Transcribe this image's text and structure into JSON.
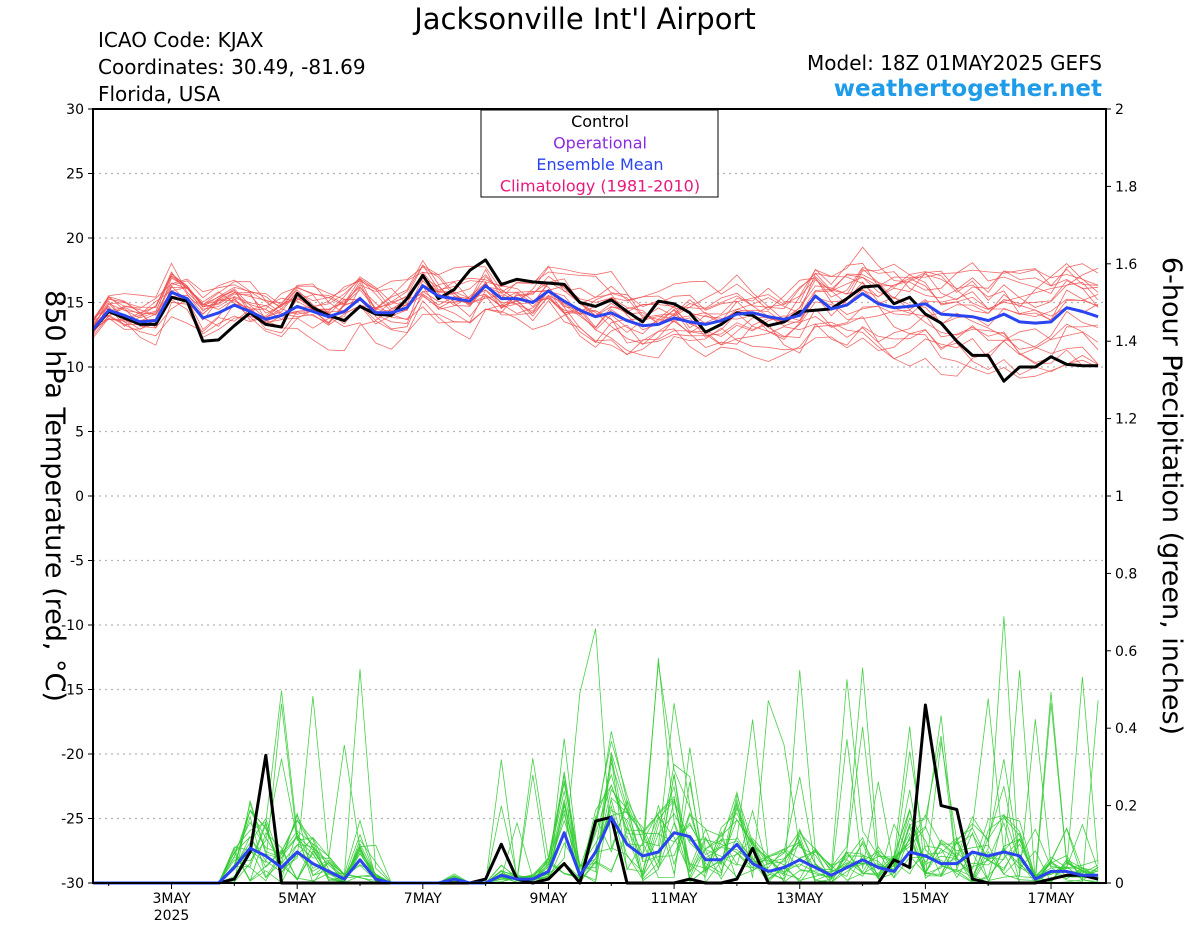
{
  "header": {
    "title": "Jacksonville Int'l Airport",
    "icao": "ICAO Code: KJAX",
    "coordinates": "Coordinates: 30.49, -81.69",
    "region": "Florida, USA",
    "model": "Model: 18Z 01MAY2025 GEFS",
    "website": "weathertogether.net"
  },
  "colors": {
    "members_temp": "#f05050",
    "members_precip": "#33cc33",
    "control": "#000000",
    "operational": "#8a2be2",
    "ensemble_mean": "#2a44f0",
    "climatology": "#e6197d",
    "website": "#1e9be9"
  },
  "chart_data": {
    "type": "line",
    "ylabel": "850 hPa Temperature (red, °C)",
    "y2label": "6-hour Precipitation (green, inches)",
    "ylim": [
      -30,
      30
    ],
    "y2lim": [
      0,
      2
    ],
    "yticks": [
      "30",
      "25",
      "20",
      "15",
      "10",
      "5",
      "0",
      "-5",
      "-10",
      "-15",
      "-20",
      "-25",
      "-30"
    ],
    "y2ticks": [
      "2",
      "1.8",
      "1.6",
      "1.4",
      "1.2",
      "1",
      "0.8",
      "0.6",
      "0.4",
      "0.2",
      "0"
    ],
    "x_start": "2025-05-01T18Z",
    "x_step_hours": 6,
    "xlim_days": [
      1.75,
      17.875
    ],
    "xticks": [
      {
        "day": 3,
        "label": "3MAY",
        "sub": "2025"
      },
      {
        "day": 5,
        "label": "5MAY",
        "sub": ""
      },
      {
        "day": 7,
        "label": "7MAY",
        "sub": ""
      },
      {
        "day": 9,
        "label": "9MAY",
        "sub": ""
      },
      {
        "day": 11,
        "label": "11MAY",
        "sub": ""
      },
      {
        "day": 13,
        "label": "13MAY",
        "sub": ""
      },
      {
        "day": 15,
        "label": "15MAY",
        "sub": ""
      },
      {
        "day": 17,
        "label": "17MAY",
        "sub": ""
      }
    ],
    "grid": true,
    "legend_position": "top-center",
    "legend": [
      {
        "label": "Control",
        "color": "#000000"
      },
      {
        "label": "Operational",
        "color": "#8a2be2"
      },
      {
        "label": "Ensemble Mean",
        "color": "#2a44f0"
      },
      {
        "label": "Climatology (1981-2010)",
        "color": "#e6197d"
      }
    ],
    "series": [
      {
        "name": "Control",
        "axis": "temperature",
        "values": [
          12.9,
          14.3,
          13.8,
          13.3,
          13.3,
          15.4,
          15.1,
          12.0,
          12.1,
          13.2,
          14.2,
          13.3,
          13.1,
          15.7,
          14.6,
          14.0,
          13.6,
          14.7,
          14.1,
          14.0,
          15.3,
          17.1,
          15.3,
          16.0,
          17.5,
          18.3,
          16.4,
          16.8,
          16.6,
          16.5,
          16.4,
          15.0,
          14.7,
          15.2,
          14.3,
          13.5,
          15.1,
          14.9,
          14.2,
          12.7,
          13.3,
          14.2,
          14.0,
          13.2,
          13.5,
          14.3,
          14.4,
          14.5,
          15.3,
          16.2,
          16.3,
          14.9,
          15.4,
          14.1,
          13.4,
          12.0,
          10.9,
          10.9,
          8.9,
          10.0,
          10.0,
          10.8,
          10.2,
          10.1,
          10.1
        ]
      },
      {
        "name": "Ensemble Mean",
        "axis": "temperature",
        "values": [
          12.9,
          14.4,
          14.0,
          13.5,
          13.6,
          15.8,
          15.3,
          13.8,
          14.2,
          14.8,
          14.3,
          13.7,
          14.0,
          14.7,
          14.3,
          13.9,
          14.3,
          15.3,
          14.2,
          14.2,
          14.6,
          16.3,
          15.5,
          15.3,
          15.1,
          16.3,
          15.3,
          15.3,
          15.0,
          15.9,
          15.1,
          14.4,
          13.9,
          14.2,
          13.6,
          13.2,
          13.3,
          13.8,
          13.5,
          13.3,
          13.6,
          14.1,
          14.2,
          13.9,
          13.7,
          14.0,
          15.5,
          14.5,
          14.8,
          15.7,
          14.9,
          14.6,
          14.7,
          14.9,
          14.1,
          14.0,
          13.9,
          13.6,
          14.1,
          13.5,
          13.4,
          13.5,
          14.6,
          14.3,
          13.9
        ]
      },
      {
        "name": "Control",
        "axis": "precipitation",
        "values": [
          0,
          0,
          0,
          0,
          0,
          0,
          0,
          0,
          0,
          0.01,
          0.08,
          0.33,
          0,
          0,
          0,
          0,
          0,
          0,
          0,
          0,
          0,
          0,
          0,
          0,
          0,
          0.01,
          0.1,
          0.01,
          0,
          0.01,
          0.05,
          0,
          0.16,
          0.17,
          0,
          0,
          0,
          0,
          0.01,
          0,
          0,
          0.01,
          0.09,
          0,
          0,
          0,
          0,
          0,
          0,
          0,
          0,
          0.06,
          0.04,
          0.46,
          0.2,
          0.19,
          0.01,
          0,
          0,
          0,
          0,
          0.01,
          0.02,
          0.02,
          0.01
        ]
      },
      {
        "name": "Ensemble Mean",
        "axis": "precipitation",
        "values": [
          0,
          0,
          0,
          0,
          0,
          0,
          0,
          0,
          0,
          0.04,
          0.09,
          0.07,
          0.04,
          0.08,
          0.05,
          0.03,
          0.01,
          0.06,
          0.01,
          0,
          0,
          0,
          0,
          0.01,
          0,
          0,
          0.02,
          0.01,
          0.01,
          0.03,
          0.13,
          0.02,
          0.08,
          0.17,
          0.1,
          0.07,
          0.08,
          0.13,
          0.12,
          0.06,
          0.06,
          0.1,
          0.05,
          0.03,
          0.04,
          0.06,
          0.04,
          0.02,
          0.04,
          0.06,
          0.04,
          0.03,
          0.08,
          0.07,
          0.05,
          0.05,
          0.08,
          0.07,
          0.08,
          0.07,
          0.01,
          0.03,
          0.03,
          0.02,
          0.02
        ]
      }
    ]
  }
}
